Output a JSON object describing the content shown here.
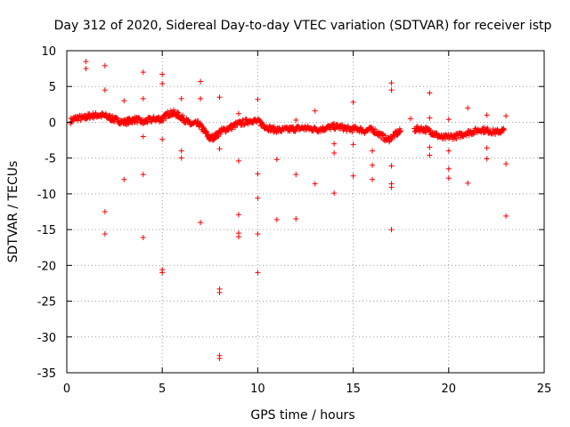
{
  "chart_data": {
    "type": "scatter",
    "title": "Day 312 of 2020, Sidereal Day-to-day VTEC variation (SDTVAR) for receiver istp",
    "xlabel": "GPS time / hours",
    "ylabel": "SDTVAR / TECUs",
    "xlim": [
      0,
      25
    ],
    "ylim": [
      -35,
      10
    ],
    "xticks": [
      0,
      5,
      10,
      15,
      20,
      25
    ],
    "yticks": [
      10,
      5,
      0,
      -5,
      -10,
      -15,
      -20,
      -25,
      -30,
      -35
    ],
    "grid": true,
    "marker": "+",
    "color": "#ff0000",
    "band": [
      [
        0.2,
        0.2
      ],
      [
        0.5,
        0.6
      ],
      [
        0.9,
        0.6
      ],
      [
        1.2,
        0.9
      ],
      [
        1.6,
        1.0
      ],
      [
        2.0,
        0.9
      ],
      [
        2.3,
        0.6
      ],
      [
        2.6,
        0.3
      ],
      [
        3.0,
        0.0
      ],
      [
        3.3,
        0.2
      ],
      [
        3.6,
        0.4
      ],
      [
        4.0,
        0.0
      ],
      [
        4.3,
        0.3
      ],
      [
        4.7,
        0.5
      ],
      [
        5.0,
        0.4
      ],
      [
        5.3,
        1.2
      ],
      [
        5.6,
        1.3
      ],
      [
        5.9,
        0.9
      ],
      [
        6.2,
        0.3
      ],
      [
        6.5,
        -0.3
      ],
      [
        6.9,
        -0.2
      ],
      [
        7.2,
        -1.2
      ],
      [
        7.5,
        -2.3
      ],
      [
        7.8,
        -1.9
      ],
      [
        8.1,
        -1.2
      ],
      [
        8.5,
        -0.8
      ],
      [
        8.9,
        -0.3
      ],
      [
        9.3,
        0.0
      ],
      [
        9.7,
        0.3
      ],
      [
        10.1,
        0.0
      ],
      [
        10.4,
        -0.6
      ],
      [
        10.8,
        -1.0
      ],
      [
        11.2,
        -1.1
      ],
      [
        11.6,
        -1.0
      ],
      [
        12.0,
        -0.9
      ],
      [
        12.4,
        -0.8
      ],
      [
        12.8,
        -0.9
      ],
      [
        13.2,
        -1.0
      ],
      [
        13.6,
        -0.8
      ],
      [
        14.0,
        -0.6
      ],
      [
        14.4,
        -0.7
      ],
      [
        14.8,
        -1.0
      ],
      [
        15.2,
        -0.9
      ],
      [
        15.6,
        -1.2
      ],
      [
        16.0,
        -1.0
      ],
      [
        16.4,
        -1.7
      ],
      [
        16.8,
        -2.5
      ],
      [
        17.2,
        -1.7
      ],
      [
        17.5,
        -1.2
      ],
      [
        18.2,
        -1.0
      ],
      [
        18.6,
        -0.9
      ],
      [
        19.0,
        -1.2
      ],
      [
        19.3,
        -1.7
      ],
      [
        19.7,
        -2.2
      ],
      [
        20.1,
        -2.0
      ],
      [
        20.5,
        -1.9
      ],
      [
        20.9,
        -1.5
      ],
      [
        21.3,
        -1.3
      ],
      [
        21.7,
        -1.0
      ],
      [
        22.1,
        -1.2
      ],
      [
        22.5,
        -1.4
      ],
      [
        22.9,
        -1.1
      ]
    ],
    "band_spread": 0.8,
    "outliers": [
      [
        1.0,
        8.5
      ],
      [
        1.0,
        7.5
      ],
      [
        2.0,
        7.9
      ],
      [
        2.0,
        4.5
      ],
      [
        2.0,
        -12.5
      ],
      [
        2.0,
        -15.6
      ],
      [
        3.0,
        3.0
      ],
      [
        3.0,
        -8.0
      ],
      [
        4.0,
        7.0
      ],
      [
        4.0,
        3.3
      ],
      [
        4.0,
        -2.0
      ],
      [
        4.0,
        -7.3
      ],
      [
        4.0,
        -16.1
      ],
      [
        5.0,
        6.7
      ],
      [
        5.0,
        5.4
      ],
      [
        5.0,
        -2.4
      ],
      [
        5.0,
        -20.6
      ],
      [
        5.0,
        -21.0
      ],
      [
        6.0,
        3.3
      ],
      [
        6.0,
        -4.0
      ],
      [
        6.0,
        -5.0
      ],
      [
        7.0,
        5.7
      ],
      [
        7.0,
        3.3
      ],
      [
        7.0,
        -14.0
      ],
      [
        8.0,
        3.5
      ],
      [
        8.0,
        -3.7
      ],
      [
        8.0,
        -23.3
      ],
      [
        8.0,
        -23.8
      ],
      [
        8.0,
        -32.6
      ],
      [
        8.0,
        -33.0
      ],
      [
        9.0,
        1.2
      ],
      [
        9.0,
        -5.4
      ],
      [
        9.0,
        -12.9
      ],
      [
        9.0,
        -15.5
      ],
      [
        9.0,
        -16.0
      ],
      [
        10.0,
        3.2
      ],
      [
        10.0,
        -7.2
      ],
      [
        10.0,
        -10.6
      ],
      [
        10.0,
        -15.6
      ],
      [
        10.0,
        -21.0
      ],
      [
        11.0,
        -5.2
      ],
      [
        11.0,
        -13.6
      ],
      [
        12.0,
        0.3
      ],
      [
        12.0,
        -7.3
      ],
      [
        12.0,
        -13.5
      ],
      [
        13.0,
        1.6
      ],
      [
        13.0,
        -8.6
      ],
      [
        14.0,
        -3.0
      ],
      [
        14.0,
        -4.3
      ],
      [
        14.0,
        -9.9
      ],
      [
        15.0,
        2.8
      ],
      [
        15.0,
        -3.1
      ],
      [
        15.0,
        -7.5
      ],
      [
        16.0,
        -4.0
      ],
      [
        16.0,
        -6.0
      ],
      [
        16.0,
        -8.0
      ],
      [
        17.0,
        5.5
      ],
      [
        17.0,
        4.5
      ],
      [
        17.0,
        -6.1
      ],
      [
        17.0,
        -8.6
      ],
      [
        17.0,
        -9.1
      ],
      [
        17.0,
        -15.0
      ],
      [
        18.0,
        0.5
      ],
      [
        19.0,
        4.1
      ],
      [
        19.0,
        0.6
      ],
      [
        19.0,
        -3.5
      ],
      [
        19.0,
        -4.6
      ],
      [
        20.0,
        0.4
      ],
      [
        20.0,
        -4.0
      ],
      [
        20.0,
        -6.5
      ],
      [
        20.0,
        -7.8
      ],
      [
        21.0,
        2.0
      ],
      [
        21.0,
        -8.5
      ],
      [
        22.0,
        1.0
      ],
      [
        22.0,
        -3.6
      ],
      [
        22.0,
        -5.1
      ],
      [
        23.0,
        0.9
      ],
      [
        23.0,
        -5.8
      ],
      [
        23.0,
        -13.1
      ]
    ],
    "gaps": [
      [
        17.5,
        18.1
      ]
    ]
  }
}
